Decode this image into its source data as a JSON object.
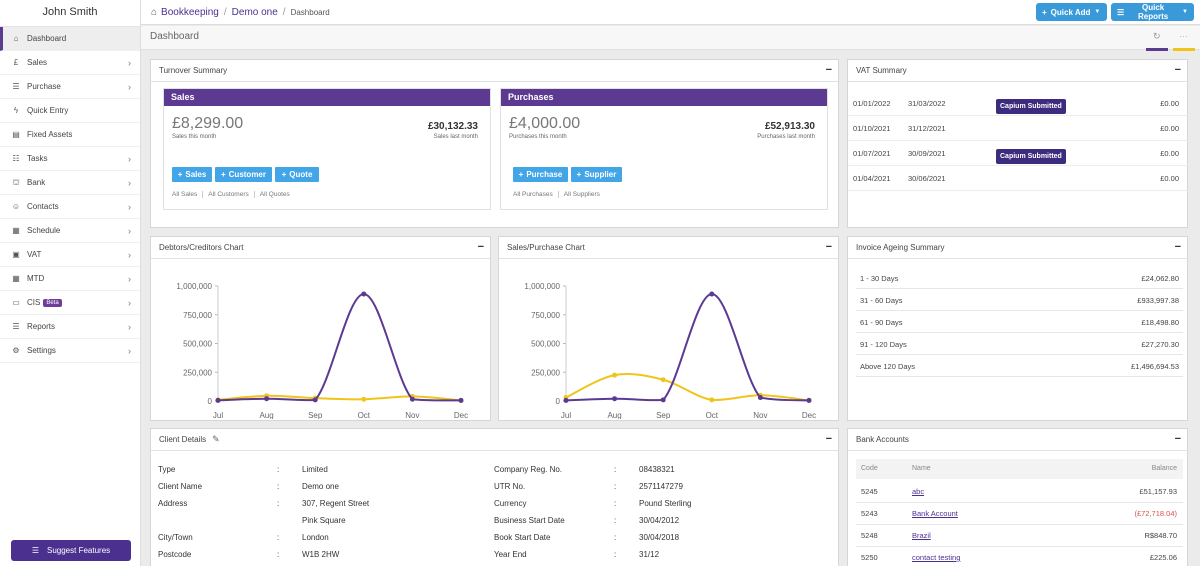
{
  "sidebar": {
    "user": "John Smith",
    "items": [
      {
        "label": "Dashboard",
        "icon": "home-icon"
      },
      {
        "label": "Sales",
        "icon": "pound-icon"
      },
      {
        "label": "Purchase",
        "icon": "list-icon"
      },
      {
        "label": "Quick Entry",
        "icon": "bolt-icon"
      },
      {
        "label": "Fixed Assets",
        "icon": "building-icon"
      },
      {
        "label": "Tasks",
        "icon": "tasks-icon"
      },
      {
        "label": "Bank",
        "icon": "bank-icon"
      },
      {
        "label": "Contacts",
        "icon": "users-icon"
      },
      {
        "label": "Schedule",
        "icon": "calendar-icon"
      },
      {
        "label": "VAT",
        "icon": "calculator-icon"
      },
      {
        "label": "MTD",
        "icon": "calendar-icon"
      },
      {
        "label": "CIS",
        "icon": "cis-icon",
        "badge": "Beta"
      },
      {
        "label": "Reports",
        "icon": "list-icon"
      },
      {
        "label": "Settings",
        "icon": "cogs-icon"
      }
    ],
    "suggest_label": "Suggest Features"
  },
  "breadcrumb": {
    "root": "Bookkeeping",
    "company": "Demo one",
    "current": "Dashboard"
  },
  "toolbar": {
    "quick_add": "Quick Add",
    "quick_reports": "Quick Reports",
    "accent": "#3a9ad9"
  },
  "page_title": "Dashboard",
  "turnover": {
    "title": "Turnover Summary",
    "sales": {
      "title": "Sales",
      "this_month": "£8,299.00",
      "this_month_label": "Sales this month",
      "last_month": "£30,132.33",
      "last_month_label": "Sales last month",
      "buttons": [
        "Sales",
        "Customer",
        "Quote"
      ],
      "links": [
        "All Sales",
        "All Customers",
        "All Quotes"
      ]
    },
    "purchases": {
      "title": "Purchases",
      "this_month": "£4,000.00",
      "this_month_label": "Purchases this month",
      "last_month": "£52,913.30",
      "last_month_label": "Purchases last month",
      "buttons": [
        "Purchase",
        "Supplier"
      ],
      "links": [
        "All Purchases",
        "All Suppliers"
      ]
    }
  },
  "vat_summary": {
    "title": "VAT Summary",
    "rows": [
      {
        "from": "01/01/2022",
        "to": "31/03/2022",
        "status": "Capium Submitted",
        "amount": "£0.00"
      },
      {
        "from": "01/10/2021",
        "to": "31/12/2021",
        "status": "",
        "amount": "£0.00"
      },
      {
        "from": "01/07/2021",
        "to": "30/09/2021",
        "status": "Capium Submitted",
        "amount": "£0.00"
      },
      {
        "from": "01/04/2021",
        "to": "30/06/2021",
        "status": "",
        "amount": "£0.00"
      }
    ]
  },
  "chart_data": [
    {
      "type": "line",
      "title": "Debtors/Creditors Chart",
      "categories": [
        "Jul",
        "Aug",
        "Sep",
        "Oct",
        "Nov",
        "Dec"
      ],
      "yticks": [
        "0",
        "250,000",
        "500,000",
        "750,000",
        "1,000,000"
      ],
      "ylim": [
        0,
        1000000
      ],
      "series": [
        {
          "color": "#5c3a92",
          "values": [
            5000,
            20000,
            10000,
            930000,
            15000,
            5000
          ]
        },
        {
          "color": "#f0c419",
          "values": [
            10000,
            45000,
            25000,
            15000,
            40000,
            5000
          ]
        }
      ]
    },
    {
      "type": "line",
      "title": "Sales/Purchase Chart",
      "categories": [
        "Jul",
        "Aug",
        "Sep",
        "Oct",
        "Nov",
        "Dec"
      ],
      "yticks": [
        "0",
        "250,000",
        "500,000",
        "750,000",
        "1,000,000"
      ],
      "ylim": [
        0,
        1000000
      ],
      "series": [
        {
          "color": "#5c3a92",
          "values": [
            5000,
            20000,
            10000,
            930000,
            30000,
            5000
          ]
        },
        {
          "color": "#f0c419",
          "values": [
            30000,
            225000,
            185000,
            10000,
            50000,
            5000
          ]
        }
      ]
    }
  ],
  "ageing": {
    "title": "Invoice Ageing Summary",
    "rows": [
      {
        "label": "1 - 30 Days",
        "amount": "£24,062.80"
      },
      {
        "label": "31 - 60 Days",
        "amount": "£933,997.38"
      },
      {
        "label": "61 - 90 Days",
        "amount": "£18,498.80"
      },
      {
        "label": "91 - 120 Days",
        "amount": "£27,270.30"
      },
      {
        "label": "Above 120 Days",
        "amount": "£1,496,694.53"
      }
    ]
  },
  "client": {
    "title": "Client Details",
    "left": [
      {
        "label": "Type",
        "value": "Limited"
      },
      {
        "label": "Client Name",
        "value": "Demo one"
      },
      {
        "label": "Address",
        "value": "307, Regent Street"
      },
      {
        "label": "",
        "value": "Pink Square"
      },
      {
        "label": "City/Town",
        "value": "London"
      },
      {
        "label": "Postcode",
        "value": "W1B 2HW"
      }
    ],
    "right": [
      {
        "label": "Company Reg. No.",
        "value": "08438321"
      },
      {
        "label": "UTR No.",
        "value": "2571147279"
      },
      {
        "label": "Currency",
        "value": "Pound Sterling"
      },
      {
        "label": "Business Start Date",
        "value": "30/04/2012"
      },
      {
        "label": "Book Start Date",
        "value": "30/04/2018"
      },
      {
        "label": "Year End",
        "value": "31/12"
      }
    ]
  },
  "bank": {
    "title": "Bank Accounts",
    "headers": {
      "code": "Code",
      "name": "Name",
      "balance": "Balance"
    },
    "rows": [
      {
        "code": "5245",
        "name": "abc",
        "balance": "£51,157.93"
      },
      {
        "code": "5243",
        "name": "Bank Account",
        "balance": "(£72,718.04)",
        "negative": true
      },
      {
        "code": "5248",
        "name": "Brazil",
        "balance": "R$848.70"
      },
      {
        "code": "5250",
        "name": "contact testing",
        "balance": "£225.06"
      }
    ]
  }
}
